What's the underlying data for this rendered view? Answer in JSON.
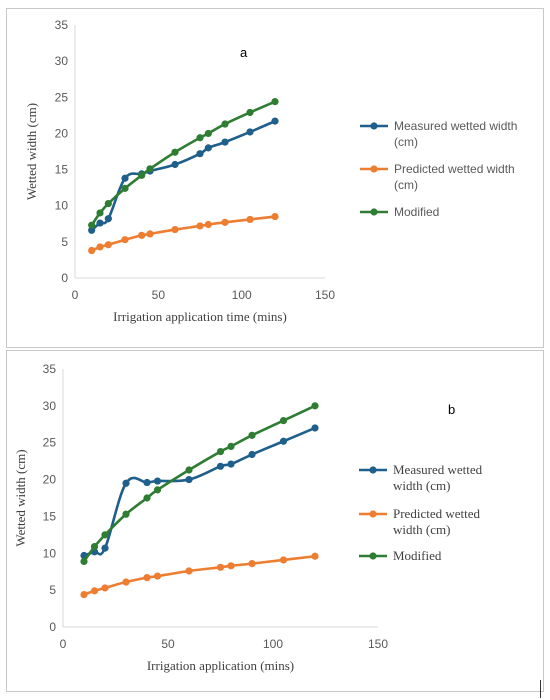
{
  "chart_data": [
    {
      "type": "line",
      "panel_label": "a",
      "xlabel": "Irrigation application time (mins)",
      "ylabel": "Wetted width (cm)",
      "xlim": [
        0,
        150
      ],
      "ylim": [
        0,
        35
      ],
      "xticks": [
        "0",
        "50",
        "100",
        "150"
      ],
      "yticks": [
        "0",
        "5",
        "10",
        "15",
        "20",
        "25",
        "30",
        "35"
      ],
      "grid": false,
      "legend_position": "right",
      "series": [
        {
          "name": "Measured wetted width (cm)",
          "legend_lines": [
            "Measured wetted width",
            "(cm)"
          ],
          "color": "#1f5f8b",
          "x": [
            10,
            15,
            20,
            30,
            40,
            45,
            60,
            75,
            80,
            90,
            105,
            120
          ],
          "y": [
            6.6,
            7.6,
            8.2,
            13.8,
            14.4,
            14.8,
            15.7,
            17.2,
            18.0,
            18.8,
            20.2,
            21.7
          ]
        },
        {
          "name": "Predicted wetted width (cm)",
          "legend_lines": [
            "Predicted wetted width",
            "(cm)"
          ],
          "color": "#ed7d31",
          "x": [
            10,
            15,
            20,
            30,
            40,
            45,
            60,
            75,
            80,
            90,
            105,
            120
          ],
          "y": [
            3.8,
            4.3,
            4.6,
            5.3,
            5.9,
            6.1,
            6.7,
            7.2,
            7.4,
            7.7,
            8.1,
            8.5
          ]
        },
        {
          "name": "Modified",
          "legend_lines": [
            "Modified"
          ],
          "color": "#2e7d32",
          "x": [
            10,
            15,
            20,
            30,
            40,
            45,
            60,
            75,
            80,
            90,
            105,
            120
          ],
          "y": [
            7.3,
            9.0,
            10.3,
            12.4,
            14.2,
            15.1,
            17.4,
            19.4,
            20.0,
            21.3,
            22.9,
            24.4
          ]
        }
      ]
    },
    {
      "type": "line",
      "panel_label": "b",
      "xlabel": "Irrigation application (mins)",
      "ylabel": "Wetted width (cm)",
      "xlim": [
        0,
        150
      ],
      "ylim": [
        0,
        35
      ],
      "xticks": [
        "0",
        "50",
        "100",
        "150"
      ],
      "yticks": [
        "0",
        "5",
        "10",
        "15",
        "20",
        "25",
        "30",
        "35"
      ],
      "grid": false,
      "legend_position": "right",
      "series": [
        {
          "name": "Measured wetted width (cm)",
          "legend_lines": [
            "Measured wetted",
            "width (cm)"
          ],
          "color": "#1f5f8b",
          "x": [
            10,
            15,
            20,
            30,
            40,
            45,
            60,
            75,
            80,
            90,
            105,
            120
          ],
          "y": [
            9.7,
            10.2,
            10.7,
            19.5,
            19.6,
            19.8,
            20.0,
            21.8,
            22.1,
            23.4,
            25.2,
            27.0
          ]
        },
        {
          "name": "Predicted wetted width (cm)",
          "legend_lines": [
            "Predicted wetted",
            "width (cm)"
          ],
          "color": "#ed7d31",
          "x": [
            10,
            15,
            20,
            30,
            40,
            45,
            60,
            75,
            80,
            90,
            105,
            120
          ],
          "y": [
            4.4,
            4.9,
            5.3,
            6.1,
            6.7,
            6.9,
            7.6,
            8.1,
            8.3,
            8.6,
            9.1,
            9.6
          ]
        },
        {
          "name": "Modified",
          "legend_lines": [
            "Modified"
          ],
          "color": "#2e7d32",
          "x": [
            10,
            15,
            20,
            30,
            40,
            45,
            60,
            75,
            80,
            90,
            105,
            120
          ],
          "y": [
            8.9,
            10.9,
            12.5,
            15.3,
            17.5,
            18.6,
            21.3,
            23.8,
            24.5,
            26.0,
            28.0,
            30.0
          ]
        }
      ]
    }
  ]
}
